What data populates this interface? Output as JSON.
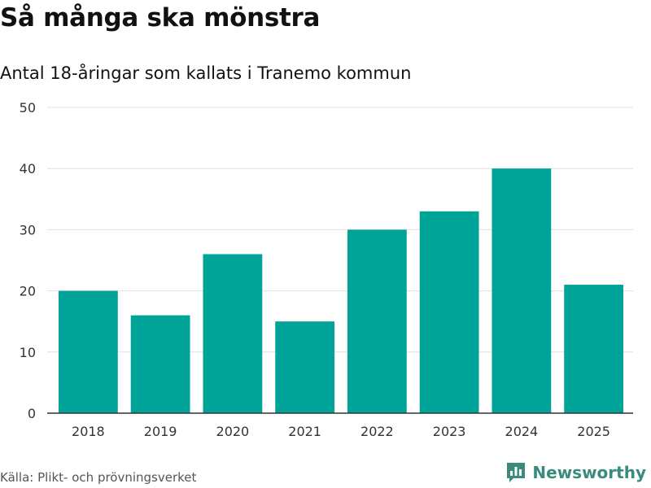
{
  "header": {
    "title": "Så många ska mönstra",
    "subtitle": "Antal 18-åringar som kallats i Tranemo kommun"
  },
  "footer": {
    "source": "Källa: Plikt- och prövningsverket",
    "brand": "Newsworthy",
    "brand_icon": "bar-chart-logo-icon"
  },
  "colors": {
    "bar": "#00a398",
    "grid": "#e0e0e0",
    "axis": "#333333",
    "brand": "#3a8a7e"
  },
  "chart_data": {
    "type": "bar",
    "title": "Så många ska mönstra",
    "subtitle": "Antal 18-åringar som kallats i Tranemo kommun",
    "xlabel": "",
    "ylabel": "",
    "categories": [
      "2018",
      "2019",
      "2020",
      "2021",
      "2022",
      "2023",
      "2024",
      "2025"
    ],
    "values": [
      20,
      16,
      26,
      15,
      30,
      33,
      40,
      21
    ],
    "ylim": [
      0,
      50
    ],
    "yticks": [
      0,
      10,
      20,
      30,
      40,
      50
    ],
    "grid": true
  }
}
